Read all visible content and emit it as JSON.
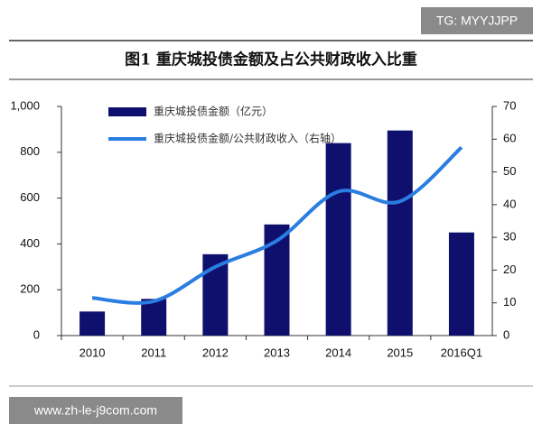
{
  "top_tag": "TG: MYYJJPP",
  "footer_tag": "www.zh-le-j9com.com",
  "chart_data": {
    "type": "bar-line",
    "title": "图1  重庆城投债金额及占公共财政收入比重",
    "categories": [
      "2010",
      "2011",
      "2012",
      "2013",
      "2014",
      "2015",
      "2016Q1"
    ],
    "series": [
      {
        "name": "重庆城投债金额（亿元）",
        "color": "#0f0f6e",
        "type": "bar",
        "values": [
          105,
          160,
          355,
          485,
          840,
          895,
          450
        ]
      },
      {
        "name": "重庆城投债金额/公共财政收入（右轴）",
        "color": "#2a7de1",
        "type": "line",
        "axis": "y2",
        "values": [
          11.5,
          10.5,
          21,
          29,
          44,
          41,
          57.5
        ]
      }
    ],
    "ylim": [
      0,
      1000
    ],
    "yticks": [
      0,
      200,
      400,
      600,
      800,
      {
        "value": 1000,
        "label": "1,000"
      }
    ],
    "y2lim": [
      0,
      70
    ],
    "y2ticks": [
      0,
      10,
      20,
      30,
      40,
      50,
      60,
      70
    ],
    "legend": "upper left"
  }
}
